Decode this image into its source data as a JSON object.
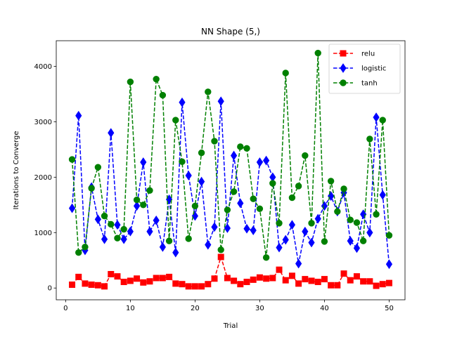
{
  "chart_data": {
    "type": "line",
    "title": "NN Shape (5,)",
    "xlabel": "Trial",
    "ylabel": "Iterations to Converge",
    "xlim": [
      -1.45,
      52.45
    ],
    "ylim": [
      -212.5,
      4462.5
    ],
    "xticks": [
      0,
      10,
      20,
      30,
      40,
      50
    ],
    "yticks": [
      0,
      1000,
      2000,
      3000,
      4000
    ],
    "legend_position": "upper right",
    "grid": false,
    "x": [
      1,
      2,
      3,
      4,
      5,
      6,
      7,
      8,
      9,
      10,
      11,
      12,
      13,
      14,
      15,
      16,
      17,
      18,
      19,
      20,
      21,
      22,
      23,
      24,
      25,
      26,
      27,
      28,
      29,
      30,
      31,
      32,
      33,
      34,
      35,
      36,
      37,
      38,
      39,
      40,
      41,
      42,
      43,
      44,
      45,
      46,
      47,
      48,
      49,
      50
    ],
    "series": [
      {
        "name": "relu",
        "color": "#ff0000",
        "marker": "square",
        "values": [
          60,
          200,
          80,
          60,
          50,
          30,
          250,
          210,
          110,
          130,
          170,
          100,
          120,
          180,
          180,
          200,
          80,
          70,
          30,
          30,
          30,
          70,
          170,
          560,
          180,
          130,
          70,
          110,
          150,
          190,
          170,
          180,
          330,
          140,
          220,
          80,
          160,
          130,
          110,
          160,
          50,
          50,
          260,
          140,
          210,
          120,
          120,
          40,
          70,
          90
        ]
      },
      {
        "name": "logistic",
        "color": "#0000ff",
        "marker": "diamond",
        "values": [
          1440,
          3110,
          680,
          1820,
          1240,
          880,
          2800,
          1140,
          880,
          1020,
          1480,
          2270,
          1020,
          1220,
          740,
          1600,
          640,
          3350,
          2030,
          1300,
          1920,
          780,
          1100,
          3370,
          1080,
          2390,
          1530,
          1070,
          1040,
          2270,
          2300,
          2000,
          730,
          870,
          1140,
          440,
          1020,
          820,
          1250,
          1480,
          1660,
          1380,
          1720,
          850,
          720,
          1330,
          1000,
          3080,
          1680,
          430
        ]
      },
      {
        "name": "tanh",
        "color": "#008000",
        "marker": "circle",
        "values": [
          2320,
          640,
          740,
          1800,
          2180,
          1300,
          1150,
          900,
          1060,
          3720,
          1590,
          1500,
          1760,
          3770,
          3480,
          850,
          3030,
          2280,
          890,
          1480,
          2440,
          3540,
          2650,
          690,
          1410,
          1740,
          2550,
          2520,
          1610,
          1430,
          550,
          1890,
          1170,
          3880,
          1630,
          1840,
          2390,
          1170,
          4240,
          840,
          1930,
          1380,
          1790,
          1230,
          1180,
          850,
          2690,
          1330,
          3030,
          950
        ]
      }
    ]
  }
}
